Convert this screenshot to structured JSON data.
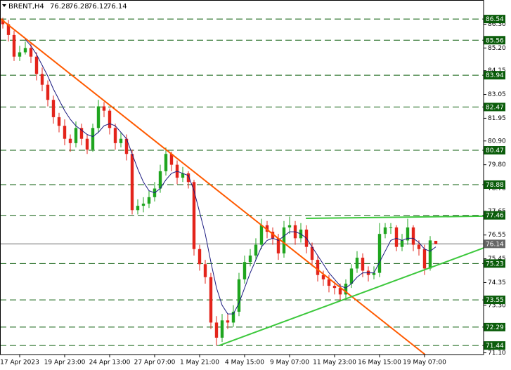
{
  "chart_data": {
    "type": "candlestick",
    "symbol": "BRENT,H4",
    "categories": [
      null,
      null,
      null,
      "17 Apr 2023",
      null,
      null,
      null,
      null,
      null,
      null,
      null,
      "19 Apr 23:00",
      null,
      null,
      null,
      null,
      null,
      null,
      null,
      "24 Apr 13:00",
      null,
      null,
      null,
      null,
      null,
      null,
      null,
      "27 Apr 07:00",
      null,
      null,
      null,
      null,
      null,
      null,
      null,
      "1 May 21:00",
      null,
      null,
      null,
      null,
      null,
      null,
      null,
      "4 May 15:00",
      null,
      null,
      null,
      null,
      null,
      null,
      null,
      "9 May 07:00",
      null,
      null,
      null,
      null,
      null,
      null,
      null,
      "11 May 23:00",
      null,
      null,
      null,
      null,
      null,
      null,
      null,
      "16 May 15:00",
      null,
      null,
      null,
      null,
      null,
      null,
      null,
      "19 May 07:00",
      null,
      null
    ],
    "open": [
      86.5,
      86.3,
      85.8,
      84.8,
      85.0,
      85.2,
      84.8,
      84.0,
      83.5,
      82.8,
      82.0,
      81.6,
      81.0,
      80.8,
      81.5,
      81.0,
      80.5,
      81.5,
      82.5,
      82.3,
      81.5,
      80.8,
      81.0,
      80.3,
      77.7,
      77.9,
      78.0,
      78.3,
      78.7,
      79.5,
      80.3,
      79.8,
      79.2,
      79.4,
      79.0,
      75.9,
      75.2,
      74.6,
      72.5,
      71.8,
      72.6,
      72.5,
      73.0,
      74.5,
      75.3,
      75.6,
      76.1,
      77.0,
      76.7,
      76.4,
      75.7,
      76.9,
      77.0,
      76.4,
      76.8,
      76.0,
      75.4,
      74.7,
      74.5,
      74.2,
      74.1,
      73.8,
      74.3,
      75.0,
      75.5,
      74.9,
      74.7,
      74.8,
      76.6,
      76.9,
      76.9,
      76.0,
      76.3,
      76.9,
      76.1,
      75.9,
      75.0,
      76.28
    ],
    "high": [
      86.6,
      86.5,
      86.0,
      85.3,
      85.5,
      85.4,
      85.0,
      84.3,
      83.7,
      83.0,
      82.2,
      81.9,
      81.2,
      81.8,
      81.7,
      81.2,
      81.7,
      82.8,
      82.7,
      82.4,
      81.7,
      81.3,
      81.2,
      80.5,
      78.2,
      78.3,
      78.6,
      79.0,
      79.8,
      80.6,
      80.4,
      80.0,
      79.7,
      79.5,
      79.1,
      76.1,
      75.4,
      74.8,
      72.8,
      72.9,
      72.9,
      73.3,
      74.8,
      75.6,
      75.9,
      76.4,
      77.3,
      77.2,
      76.9,
      76.6,
      77.2,
      77.4,
      77.2,
      77.1,
      77.0,
      76.2,
      75.6,
      74.9,
      74.7,
      74.4,
      74.3,
      74.5,
      75.2,
      75.8,
      75.7,
      75.1,
      75.1,
      77.1,
      77.1,
      77.1,
      77.0,
      76.6,
      77.3,
      77.0,
      76.3,
      76.1,
      76.5,
      76.28
    ],
    "low": [
      86.1,
      85.5,
      84.6,
      84.6,
      84.9,
      84.5,
      83.7,
      83.2,
      82.5,
      81.7,
      81.3,
      80.7,
      80.4,
      80.6,
      80.7,
      80.3,
      80.4,
      81.3,
      82.0,
      81.2,
      80.5,
      80.6,
      80.0,
      77.5,
      77.5,
      77.6,
      77.8,
      78.1,
      78.5,
      79.3,
      79.5,
      78.9,
      79.0,
      78.7,
      75.6,
      74.9,
      74.3,
      72.2,
      71.44,
      71.6,
      72.2,
      72.3,
      72.8,
      74.3,
      75.1,
      75.4,
      75.9,
      76.4,
      76.1,
      75.4,
      75.5,
      76.6,
      76.1,
      76.2,
      75.7,
      75.1,
      74.4,
      74.2,
      73.9,
      73.8,
      73.5,
      73.6,
      74.1,
      74.8,
      74.6,
      74.4,
      74.5,
      74.6,
      76.4,
      76.6,
      75.8,
      75.8,
      76.1,
      75.8,
      75.6,
      74.7,
      74.9,
      76.12
    ],
    "close": [
      86.3,
      85.8,
      84.8,
      85.0,
      85.2,
      84.8,
      84.0,
      83.5,
      82.8,
      82.0,
      81.6,
      81.0,
      80.8,
      81.5,
      81.0,
      80.5,
      81.5,
      82.5,
      82.3,
      81.5,
      80.8,
      81.0,
      80.3,
      77.7,
      77.9,
      78.0,
      78.3,
      78.7,
      79.5,
      80.3,
      79.8,
      79.2,
      79.4,
      79.0,
      75.9,
      75.2,
      74.6,
      72.5,
      71.8,
      72.6,
      72.5,
      73.0,
      74.5,
      75.3,
      75.6,
      76.1,
      77.0,
      76.7,
      76.4,
      75.7,
      76.9,
      77.0,
      76.4,
      76.8,
      76.0,
      75.4,
      74.7,
      74.5,
      74.2,
      74.1,
      73.8,
      74.3,
      75.0,
      75.5,
      74.9,
      74.7,
      74.8,
      76.6,
      76.9,
      76.9,
      76.0,
      76.3,
      76.9,
      76.1,
      75.9,
      75.0,
      76.3,
      76.14
    ],
    "up_color": "#1fa51f",
    "down_color": "#e3241b",
    "ma": {
      "color": "#1a1a80",
      "values": [
        null,
        null,
        null,
        null,
        85.6,
        85.3,
        84.9,
        84.4,
        83.9,
        83.3,
        82.8,
        82.3,
        81.9,
        81.6,
        81.4,
        81.2,
        81.1,
        81.3,
        81.6,
        81.7,
        81.6,
        81.3,
        81.0,
        80.3,
        79.6,
        79.0,
        78.6,
        78.5,
        78.7,
        79.1,
        79.4,
        79.5,
        79.4,
        79.3,
        78.6,
        77.6,
        76.6,
        75.3,
        74.1,
        73.3,
        72.9,
        72.9,
        73.4,
        74.1,
        74.8,
        75.4,
        76.0,
        76.3,
        76.4,
        76.3,
        76.5,
        76.7,
        76.7,
        76.6,
        76.4,
        76.0,
        75.6,
        75.2,
        74.8,
        74.5,
        74.2,
        74.1,
        74.3,
        74.6,
        74.8,
        74.8,
        74.8,
        75.3,
        75.8,
        76.3,
        76.4,
        76.3,
        76.4,
        76.4,
        76.2,
        75.9,
        75.8,
        76.0
      ]
    },
    "trendlines": [
      {
        "color": "#ff5a00",
        "points": [
          [
            -0.5,
            86.57
          ],
          [
            75.1,
            71.02
          ]
        ]
      },
      {
        "color": "#3cc83c",
        "points": [
          [
            38.5,
            71.44
          ],
          [
            85.5,
            75.95
          ]
        ]
      },
      {
        "color": "#3cc83c",
        "points": [
          [
            53.9,
            77.32
          ],
          [
            85.5,
            77.42
          ]
        ]
      }
    ],
    "levels": [
      86.54,
      85.56,
      83.94,
      82.47,
      80.47,
      78.88,
      77.46,
      76.14,
      75.23,
      73.55,
      72.29,
      71.44
    ],
    "level_color": "#0b5d0b",
    "current_price": 76.14,
    "current_color": "#666666",
    "xlim": [
      -0.5,
      85.5
    ],
    "ylim": [
      71.02,
      87.42
    ],
    "yticks": [
      {
        "value": 86.3,
        "label": "86.30"
      },
      {
        "value": 85.2,
        "label": "85.20"
      },
      84.15,
      83.05,
      81.95,
      {
        "value": 80.9,
        "label": "80.90"
      },
      {
        "value": 79.8,
        "label": "79.80"
      },
      {
        "value": 78.7,
        "label": "78.70"
      },
      77.65,
      76.55,
      75.45,
      74.35,
      {
        "value": 73.3,
        "label": "73.30"
      },
      {
        "value": 72.2,
        "label": "72.20"
      },
      {
        "value": 71.1,
        "label": "71.10"
      }
    ]
  }
}
